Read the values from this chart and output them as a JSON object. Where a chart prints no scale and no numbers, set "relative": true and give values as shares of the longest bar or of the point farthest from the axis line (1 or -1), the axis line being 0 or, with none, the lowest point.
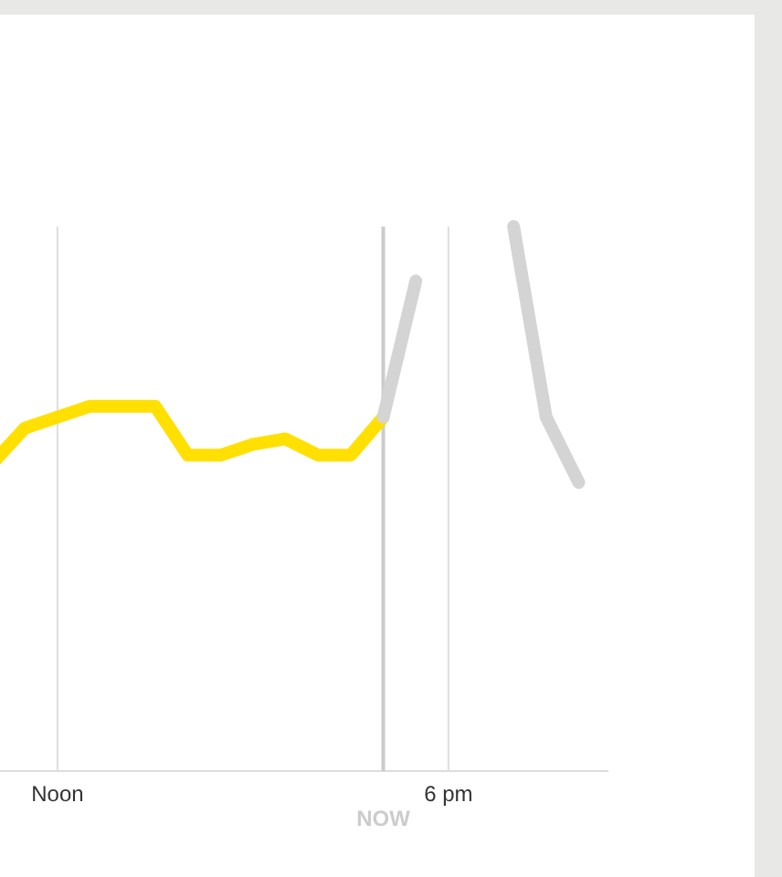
{
  "chart_data": {
    "type": "line",
    "relative": true,
    "categories": [
      null,
      null,
      "Noon",
      null,
      null,
      null,
      null,
      null,
      null,
      null,
      null,
      null,
      "NOW",
      null,
      "6 pm",
      null,
      null,
      null,
      null
    ],
    "grid": "x",
    "series": [
      {
        "color": "#ffe000",
        "values": [
          0.565,
          0.63,
          0.65,
          0.67,
          0.67,
          0.67,
          0.58,
          0.58,
          0.6,
          0.61,
          0.58,
          0.58,
          0.65,
          null,
          null,
          null,
          null,
          null,
          null
        ]
      },
      {
        "color": "#d4d4d4",
        "values": [
          null,
          null,
          null,
          null,
          null,
          null,
          null,
          null,
          null,
          null,
          null,
          null,
          0.65,
          0.9,
          null,
          null,
          1,
          0.65,
          0.53
        ]
      }
    ],
    "ref_lines": [
      {
        "axis": "x",
        "value": "NOW",
        "color": "#cccccc"
      }
    ]
  }
}
